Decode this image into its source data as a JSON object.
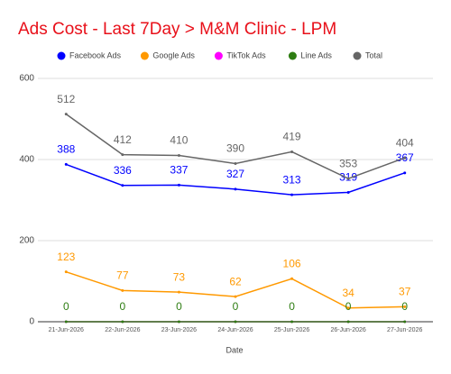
{
  "chart_data": {
    "type": "line",
    "title": "Ads Cost - Last 7Day > M&M Clinic - LPM",
    "x_label": "Date",
    "categories": [
      "21-Jun-2026",
      "22-Jun-2026",
      "23-Jun-2026",
      "24-Jun-2026",
      "25-Jun-2026",
      "26-Jun-2026",
      "27-Jun-2026"
    ],
    "series": [
      {
        "name": "Facebook Ads",
        "color": "#0000ff",
        "values": [
          388,
          336,
          337,
          327,
          313,
          319,
          367
        ],
        "show_labels": true
      },
      {
        "name": "Google Ads",
        "color": "#ff9900",
        "values": [
          123,
          77,
          73,
          62,
          106,
          34,
          37
        ],
        "show_labels": true
      },
      {
        "name": "TikTok Ads",
        "color": "#ff00ff",
        "values": [
          0,
          0,
          0,
          0,
          0,
          0,
          0
        ],
        "show_labels": false
      },
      {
        "name": "Line Ads",
        "color": "#2e7d12",
        "values": [
          0,
          0,
          0,
          0,
          0,
          0,
          0
        ],
        "show_labels": true
      },
      {
        "name": "Total",
        "color": "#666666",
        "values": [
          512,
          412,
          410,
          390,
          419,
          353,
          404
        ],
        "show_labels": true
      }
    ],
    "ylim": [
      0,
      600
    ],
    "yticks": [
      0,
      200,
      400,
      600
    ],
    "grid": true
  }
}
